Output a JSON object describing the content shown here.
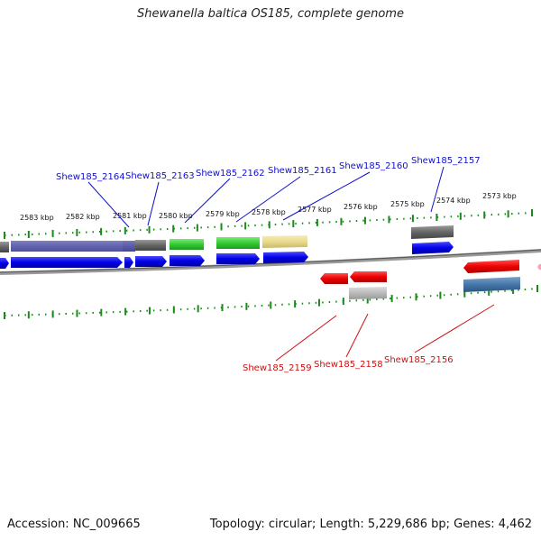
{
  "title": "Shewanella baltica OS185, complete genome",
  "footer": {
    "accession": "Accession: NC_009665",
    "summary": "Topology: circular; Length: 5,229,686 bp; Genes: 4,462"
  },
  "colors": {
    "forward_label": "#1010cc",
    "reverse_label": "#cc1010",
    "tick": "#1a8a1a",
    "backbone": "#888888"
  },
  "ruler_labels": [
    "2583 kbp",
    "2582 kbp",
    "2581 kbp",
    "2580 kbp",
    "2579 kbp",
    "2578 kbp",
    "2577 kbp",
    "2576 kbp",
    "2575 kbp",
    "2574 kbp",
    "2573 kbp"
  ],
  "forward_labels": [
    "Shew185_2164",
    "Shew185_2163",
    "Shew185_2162",
    "Shew185_2161",
    "Shew185_2160",
    "Shew185_2157"
  ],
  "reverse_labels": [
    "Shew185_2159",
    "Shew185_2158",
    "Shew185_2156"
  ]
}
